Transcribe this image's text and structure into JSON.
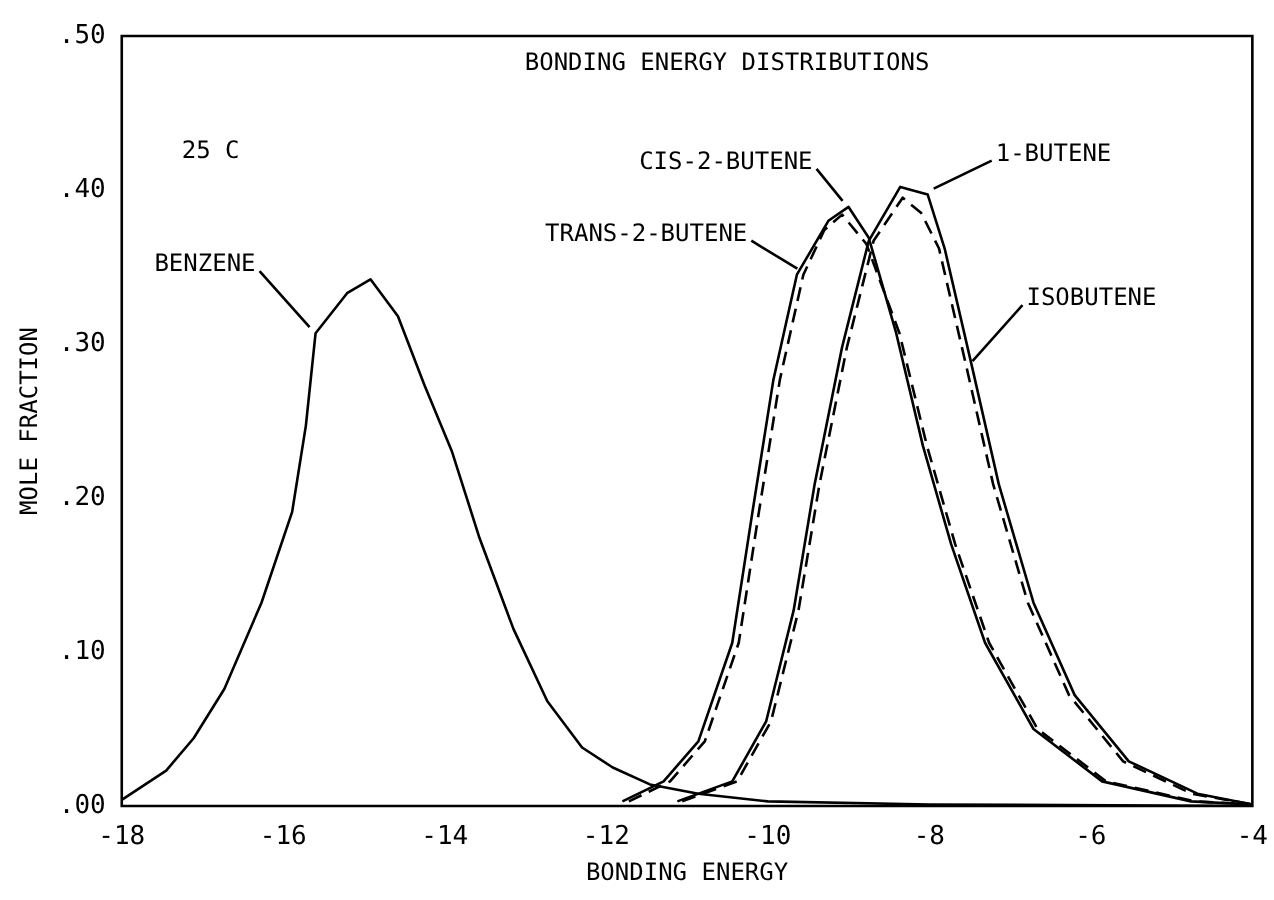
{
  "chart_data": {
    "type": "line",
    "title": "BONDING ENERGY DISTRIBUTIONS",
    "xlabel": "BONDING ENERGY",
    "ylabel": "MOLE FRACTION",
    "annotations": [
      "25 C"
    ],
    "xlim": [
      -18,
      -4
    ],
    "xticks": [
      -18,
      -16,
      -14,
      -12,
      -10,
      -8,
      -6,
      -4
    ],
    "ylim": [
      0,
      0.5
    ],
    "yticks": [
      {
        "value": 0,
        "label": ".00"
      },
      {
        "value": 0.1,
        "label": ".10"
      },
      {
        "value": 0.2,
        "label": ".20"
      },
      {
        "value": 0.3,
        "label": ".30"
      },
      {
        "value": 0.4,
        "label": ".40"
      },
      {
        "value": 0.5,
        "label": ".50"
      }
    ],
    "grid": false,
    "legend": false,
    "marker": "none",
    "series": [
      {
        "name": "BENZENE",
        "color": "#000000",
        "line_style": "solid",
        "x": [
          -18,
          -17.45,
          -17.11,
          -16.73,
          -16.27,
          -15.89,
          -15.72,
          -15.6,
          -15.21,
          -14.92,
          -14.58,
          -14.25,
          -13.91,
          -13.57,
          -13.15,
          -12.73,
          -12.3,
          -11.92,
          -11.46,
          -10.86,
          -10,
          -8,
          -4
        ],
        "values": [
          0.004,
          0.023,
          0.044,
          0.076,
          0.132,
          0.191,
          0.247,
          0.307,
          0.333,
          0.342,
          0.318,
          0.273,
          0.23,
          0.174,
          0.115,
          0.068,
          0.038,
          0.025,
          0.014,
          0.008,
          0.003,
          0.001,
          0
        ]
      },
      {
        "name": "CIS-2-BUTENE",
        "color": "#000000",
        "line_style": "solid",
        "x": [
          -11.8,
          -11.29,
          -10.86,
          -10.44,
          -10.19,
          -9.93,
          -9.64,
          -9.25,
          -9.0,
          -8.75,
          -8.41,
          -8.08,
          -7.73,
          -7.31,
          -6.71,
          -5.86,
          -4.76,
          -4
        ],
        "values": [
          0.003,
          0.016,
          0.042,
          0.106,
          0.191,
          0.277,
          0.345,
          0.38,
          0.389,
          0.369,
          0.307,
          0.234,
          0.17,
          0.106,
          0.05,
          0.016,
          0.003,
          0.001
        ]
      },
      {
        "name": "TRANS-2-BUTENE",
        "color": "#000000",
        "line_style": "dashed",
        "x": [
          -11.72,
          -11.21,
          -10.78,
          -10.36,
          -10.11,
          -9.85,
          -9.56,
          -9.3,
          -9.08,
          -8.78,
          -8.37,
          -8.03,
          -7.68,
          -7.26,
          -6.66,
          -5.81,
          -4.71,
          -4
        ],
        "values": [
          0.003,
          0.016,
          0.042,
          0.106,
          0.191,
          0.277,
          0.345,
          0.374,
          0.384,
          0.365,
          0.307,
          0.234,
          0.17,
          0.106,
          0.05,
          0.016,
          0.003,
          0.001
        ]
      },
      {
        "name": "1-BUTENE",
        "color": "#000000",
        "line_style": "solid",
        "x": [
          -11.12,
          -10.44,
          -10.02,
          -9.68,
          -9.42,
          -9.08,
          -8.75,
          -8.36,
          -8.02,
          -7.81,
          -7.47,
          -7.14,
          -6.71,
          -6.2,
          -5.53,
          -4.68,
          -4
        ],
        "values": [
          0.003,
          0.016,
          0.055,
          0.127,
          0.209,
          0.298,
          0.367,
          0.402,
          0.397,
          0.362,
          0.285,
          0.209,
          0.132,
          0.072,
          0.029,
          0.008,
          0.001
        ]
      },
      {
        "name": "ISOBUTENE",
        "color": "#000000",
        "line_style": "dashed",
        "x": [
          -11.06,
          -10.38,
          -9.96,
          -9.62,
          -9.36,
          -9.02,
          -8.69,
          -8.33,
          -8.1,
          -7.88,
          -7.54,
          -7.21,
          -6.78,
          -6.27,
          -5.6,
          -4.75,
          -4
        ],
        "values": [
          0.003,
          0.016,
          0.055,
          0.127,
          0.209,
          0.298,
          0.367,
          0.395,
          0.385,
          0.362,
          0.285,
          0.209,
          0.132,
          0.072,
          0.029,
          0.008,
          0.001
        ]
      }
    ]
  }
}
